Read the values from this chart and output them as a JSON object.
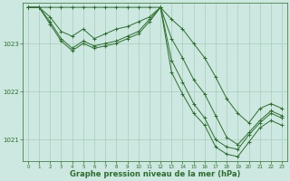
{
  "background_color": "#cce8e0",
  "line_color": "#2d6e2d",
  "grid_color": "#aaccbb",
  "xlabel": "Graphe pression niveau de la mer (hPa)",
  "xlabel_fontsize": 6,
  "ylabel_ticks": [
    1021,
    1022,
    1023
  ],
  "xlim": [
    -0.5,
    23.5
  ],
  "ylim": [
    1020.55,
    1023.85
  ],
  "xticks": [
    0,
    1,
    2,
    3,
    4,
    5,
    6,
    7,
    8,
    9,
    10,
    11,
    12,
    13,
    14,
    15,
    16,
    17,
    18,
    19,
    20,
    21,
    22,
    23
  ],
  "figsize": [
    3.2,
    2.0
  ],
  "dpi": 100,
  "series": [
    {
      "x": [
        0,
        1,
        2,
        3,
        4,
        5,
        6,
        7,
        8,
        9,
        10,
        11,
        12,
        13,
        14,
        15,
        16,
        17,
        18,
        19,
        20,
        21,
        22,
        23
      ],
      "y": [
        1023.75,
        1023.75,
        1023.75,
        1023.75,
        1023.75,
        1023.75,
        1023.75,
        1023.75,
        1023.75,
        1023.75,
        1023.75,
        1023.75,
        1023.75,
        1023.5,
        1023.3,
        1023.0,
        1022.7,
        1022.3,
        1021.85,
        1021.55,
        1021.35,
        1021.65,
        1021.75,
        1021.65
      ]
    },
    {
      "x": [
        0,
        1,
        2,
        3,
        4,
        5,
        6,
        7,
        8,
        9,
        10,
        11,
        12,
        13,
        14,
        15,
        16,
        17,
        18,
        19,
        20,
        21,
        22,
        23
      ],
      "y": [
        1023.75,
        1023.75,
        1023.55,
        1023.25,
        1023.15,
        1023.3,
        1023.1,
        1023.2,
        1023.3,
        1023.35,
        1023.45,
        1023.55,
        1023.75,
        1023.1,
        1022.7,
        1022.25,
        1021.95,
        1021.5,
        1021.05,
        1020.9,
        1021.15,
        1021.4,
        1021.6,
        1021.5
      ]
    },
    {
      "x": [
        0,
        1,
        2,
        3,
        4,
        5,
        6,
        7,
        8,
        9,
        10,
        11,
        12,
        13,
        14,
        15,
        16,
        17,
        18,
        19,
        20,
        21,
        22,
        23
      ],
      "y": [
        1023.75,
        1023.75,
        1023.45,
        1023.1,
        1022.9,
        1023.05,
        1022.95,
        1023.0,
        1023.05,
        1023.15,
        1023.25,
        1023.5,
        1023.75,
        1022.65,
        1022.2,
        1021.75,
        1021.45,
        1021.0,
        1020.85,
        1020.8,
        1021.1,
        1021.35,
        1021.55,
        1021.45
      ]
    },
    {
      "x": [
        0,
        1,
        2,
        3,
        4,
        5,
        6,
        7,
        8,
        9,
        10,
        11,
        12,
        13,
        14,
        15,
        16,
        17,
        18,
        19,
        20,
        21,
        22,
        23
      ],
      "y": [
        1023.75,
        1023.75,
        1023.4,
        1023.05,
        1022.85,
        1023.0,
        1022.9,
        1022.95,
        1023.0,
        1023.1,
        1023.2,
        1023.45,
        1023.75,
        1022.4,
        1021.95,
        1021.55,
        1021.3,
        1020.85,
        1020.7,
        1020.65,
        1020.95,
        1021.25,
        1021.4,
        1021.3
      ]
    }
  ]
}
